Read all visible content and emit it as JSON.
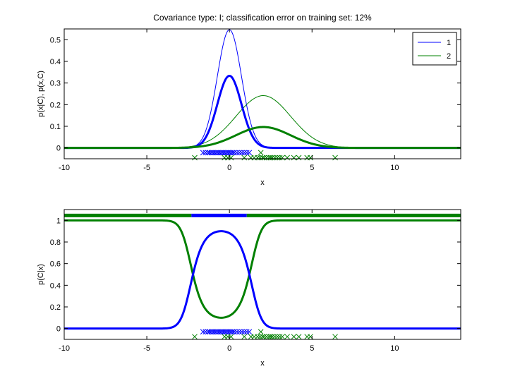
{
  "figure": {
    "title": "Covariance type: I; classification error on training set: 12%"
  },
  "colors": {
    "class1": "#0000ff",
    "class2": "#008000",
    "axis": "#000000",
    "background": "#ffffff"
  },
  "chart_data": [
    {
      "type": "line",
      "title": "Covariance type: I; classification error on training set: 12%",
      "xlabel": "x",
      "ylabel": "p(x|C), p(x,C)",
      "xlim": [
        -10,
        14
      ],
      "ylim": [
        -0.05,
        0.55
      ],
      "xticks": [
        -10,
        -5,
        0,
        5,
        10
      ],
      "yticks": [
        0,
        0.1,
        0.2,
        0.3,
        0.4,
        0.5
      ],
      "grid": false,
      "legend": {
        "position": "top-right",
        "entries": [
          "1",
          "2"
        ]
      },
      "series": [
        {
          "name": "1",
          "kind": "class-conditional p(x|C1)",
          "color": "#0000ff",
          "weight": "thin",
          "mean": 0,
          "sd": 0.73,
          "prior": 1
        },
        {
          "name": "2",
          "kind": "class-conditional p(x|C2)",
          "color": "#008000",
          "weight": "thin",
          "mean": 2.05,
          "sd": 1.65,
          "prior": 1
        },
        {
          "kind": "joint p(x,C1)",
          "color": "#0000ff",
          "weight": "thick",
          "mean": 0,
          "sd": 0.73,
          "prior": 0.61
        },
        {
          "kind": "joint p(x,C2)",
          "color": "#008000",
          "weight": "thick",
          "mean": 2.05,
          "sd": 1.65,
          "prior": 0.4
        }
      ],
      "training_points": {
        "class1": {
          "y": -0.022,
          "x": [
            -1.6,
            -1.45,
            -1.3,
            -1.2,
            -1.1,
            -1.0,
            -0.9,
            -0.8,
            -0.7,
            -0.6,
            -0.5,
            -0.4,
            -0.3,
            -0.2,
            -0.1,
            0.0,
            0.1,
            0.2,
            0.3,
            0.45,
            0.6,
            0.75,
            0.9,
            1.05,
            1.2
          ]
        },
        "class2": {
          "y": -0.045,
          "x": [
            -2.1,
            -0.3,
            -0.1,
            0.1,
            0.9,
            1.3,
            1.5,
            1.7,
            1.85,
            2.0,
            2.1,
            2.25,
            2.4,
            2.5,
            2.6,
            2.75,
            2.9,
            3.05,
            3.2,
            3.5,
            3.9,
            4.2,
            4.7,
            4.9,
            6.4
          ]
        },
        "class2_extra": {
          "y": -0.022,
          "x": [
            1.9
          ]
        }
      }
    },
    {
      "type": "line",
      "title": "",
      "xlabel": "x",
      "ylabel": "p(C|x)",
      "xlim": [
        -10,
        14
      ],
      "ylim": [
        -0.1,
        1.1
      ],
      "xticks": [
        -10,
        -5,
        0,
        5,
        10
      ],
      "yticks": [
        0,
        0.2,
        0.4,
        0.6,
        0.8,
        1
      ],
      "grid": false,
      "series": [
        {
          "name": "1",
          "kind": "posterior p(C1|x)",
          "color": "#0000ff",
          "peak": 0.9,
          "peak_x": -0.6,
          "crossings": [
            -2.3,
            1.05
          ]
        },
        {
          "name": "2",
          "kind": "posterior p(C2|x)",
          "color": "#008000",
          "min": 0.1,
          "min_x": -0.6,
          "crossings": [
            -2.3,
            1.05
          ]
        }
      ],
      "decision_band": {
        "y": 1.045,
        "segments": [
          {
            "from": -10,
            "to": -2.3,
            "class": "2",
            "color": "#008000"
          },
          {
            "from": -2.3,
            "to": 1.05,
            "class": "1",
            "color": "#0000ff"
          },
          {
            "from": 1.05,
            "to": 14,
            "class": "2",
            "color": "#008000"
          }
        ]
      },
      "training_points": {
        "class1": {
          "y": -0.03,
          "x": [
            -1.6,
            -1.45,
            -1.3,
            -1.2,
            -1.1,
            -1.0,
            -0.9,
            -0.8,
            -0.7,
            -0.6,
            -0.5,
            -0.4,
            -0.3,
            -0.2,
            -0.1,
            0.0,
            0.1,
            0.2,
            0.3,
            0.45,
            0.6,
            0.75,
            0.9,
            1.05,
            1.2
          ]
        },
        "class2": {
          "y": -0.075,
          "x": [
            -2.1,
            -0.3,
            -0.1,
            0.1,
            0.9,
            1.3,
            1.5,
            1.7,
            1.85,
            2.0,
            2.1,
            2.25,
            2.4,
            2.5,
            2.6,
            2.75,
            2.9,
            3.05,
            3.2,
            3.5,
            3.9,
            4.2,
            4.7,
            4.9,
            6.4
          ]
        },
        "class2_extra": {
          "y": -0.03,
          "x": [
            1.9
          ]
        }
      }
    }
  ]
}
